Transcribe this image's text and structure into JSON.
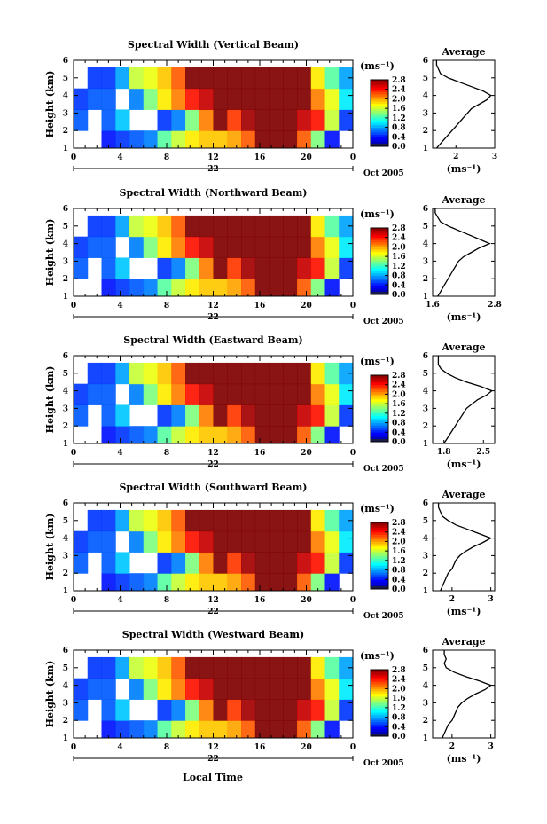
{
  "figure": {
    "bottom_xlabel": "Local Time"
  },
  "chart_data": [
    {
      "type": "heatmap",
      "panel": "vertical",
      "title": "Spectral Width (Vertical Beam)",
      "ylabel": "Height (km)",
      "ylim": [
        1,
        6
      ],
      "yticks": [
        "1",
        "2",
        "3",
        "4",
        "5",
        "6"
      ],
      "xticks": [
        "0",
        "4",
        "8",
        "12",
        "16",
        "20",
        "0"
      ],
      "date_label": "22",
      "month_label": "Oct 2005",
      "colorbar": {
        "unit_label": "(ms⁻¹)",
        "ticks": [
          "0.0",
          "0.4",
          "0.8",
          "1.2",
          "1.6",
          "2.0",
          "2.4",
          "2.8"
        ],
        "min": 0.0,
        "max": 2.8
      },
      "cell_values": [
        [
          0.3,
          0.3,
          0.4,
          0.5,
          0.6,
          0.7,
          1.3,
          1.6,
          1.8,
          1.9,
          1.9,
          2.0,
          2.2,
          2.8,
          2.8,
          2.8,
          2.2,
          1.4,
          0.4,
          0.3
        ],
        [
          0.6,
          0.3,
          0.6,
          0.9,
          0.3,
          0.3,
          0.5,
          0.7,
          1.4,
          2.1,
          2.8,
          2.3,
          2.7,
          2.8,
          2.8,
          2.8,
          2.6,
          2.4,
          1.6,
          0.5
        ],
        [
          0.5,
          0.6,
          0.6,
          0.3,
          0.7,
          1.4,
          1.8,
          2.1,
          2.4,
          2.6,
          2.8,
          2.8,
          2.8,
          2.8,
          2.8,
          2.8,
          2.8,
          2.1,
          1.7,
          1.0
        ],
        [
          0.3,
          0.5,
          0.5,
          0.8,
          1.6,
          1.7,
          1.9,
          2.2,
          2.8,
          2.8,
          2.8,
          2.8,
          2.8,
          2.8,
          2.8,
          2.8,
          2.8,
          1.8,
          1.3,
          0.8
        ]
      ],
      "average": {
        "title": "Average",
        "xlabel": "(ms⁻¹)",
        "xticks": [
          "2",
          "3"
        ],
        "xlim": [
          1.4,
          3.0
        ],
        "heights": [
          1.0,
          1.25,
          1.5,
          1.75,
          2.0,
          2.25,
          2.5,
          2.75,
          3.0,
          3.25,
          3.5,
          3.75,
          4.0,
          4.25,
          4.5,
          4.75,
          5.0,
          5.25,
          5.5,
          5.75,
          6.0
        ],
        "values": [
          1.5,
          1.6,
          1.7,
          1.8,
          1.9,
          2.0,
          2.1,
          2.2,
          2.3,
          2.4,
          2.6,
          2.8,
          2.9,
          2.7,
          2.4,
          2.1,
          1.8,
          1.6,
          1.55,
          1.5,
          1.5
        ]
      }
    },
    {
      "type": "heatmap",
      "panel": "northward",
      "title": "Spectral Width (Northward Beam)",
      "ylabel": "Height (km)",
      "ylim": [
        1,
        6
      ],
      "yticks": [
        "1",
        "2",
        "3",
        "4",
        "5",
        "6"
      ],
      "xticks": [
        "0",
        "4",
        "8",
        "12",
        "16",
        "20",
        "0"
      ],
      "date_label": "22",
      "month_label": "Oct 2005",
      "colorbar": {
        "unit_label": "(ms⁻¹)",
        "ticks": [
          "0.0",
          "0.4",
          "0.8",
          "1.2",
          "1.6",
          "2.0",
          "2.4",
          "2.8"
        ],
        "min": 0.0,
        "max": 2.8
      },
      "cell_values": [
        [
          0.3,
          0.3,
          0.4,
          0.5,
          0.6,
          0.7,
          1.3,
          1.6,
          1.8,
          1.9,
          1.9,
          2.0,
          2.2,
          2.8,
          2.8,
          2.8,
          2.2,
          1.4,
          0.4,
          0.3
        ],
        [
          0.6,
          0.3,
          0.6,
          0.9,
          0.3,
          0.3,
          0.5,
          0.7,
          1.4,
          2.1,
          2.8,
          2.3,
          2.7,
          2.8,
          2.8,
          2.8,
          2.6,
          2.4,
          1.6,
          0.5
        ],
        [
          0.5,
          0.6,
          0.6,
          0.3,
          0.7,
          1.4,
          1.8,
          2.1,
          2.4,
          2.6,
          2.8,
          2.8,
          2.8,
          2.8,
          2.8,
          2.8,
          2.8,
          2.1,
          1.7,
          1.0
        ],
        [
          0.3,
          0.5,
          0.5,
          0.8,
          1.6,
          1.7,
          1.9,
          2.2,
          2.8,
          2.8,
          2.8,
          2.8,
          2.8,
          2.8,
          2.8,
          2.8,
          2.8,
          1.8,
          1.3,
          0.8
        ]
      ],
      "average": {
        "title": "Average",
        "xlabel": "(ms⁻¹)",
        "xticks": [
          "1.6",
          "2.8"
        ],
        "xlim": [
          1.6,
          2.8
        ],
        "heights": [
          1.0,
          1.25,
          1.5,
          1.75,
          2.0,
          2.25,
          2.5,
          2.75,
          3.0,
          3.25,
          3.5,
          3.75,
          4.0,
          4.25,
          4.5,
          4.75,
          5.0,
          5.25,
          5.5,
          5.75,
          6.0
        ],
        "values": [
          1.7,
          1.75,
          1.8,
          1.85,
          1.9,
          1.95,
          2.0,
          2.05,
          2.1,
          2.2,
          2.35,
          2.5,
          2.7,
          2.5,
          2.3,
          2.1,
          1.9,
          1.75,
          1.7,
          1.65,
          1.65
        ]
      }
    },
    {
      "type": "heatmap",
      "panel": "eastward",
      "title": "Spectral Width (Eastward Beam)",
      "ylabel": "Height (km)",
      "ylim": [
        1,
        6
      ],
      "yticks": [
        "1",
        "2",
        "3",
        "4",
        "5",
        "6"
      ],
      "xticks": [
        "0",
        "4",
        "8",
        "12",
        "16",
        "20",
        "0"
      ],
      "date_label": "22",
      "month_label": "Oct 2005",
      "colorbar": {
        "unit_label": "(ms⁻¹)",
        "ticks": [
          "0.0",
          "0.4",
          "0.8",
          "1.2",
          "1.6",
          "2.0",
          "2.4",
          "2.8"
        ],
        "min": 0.0,
        "max": 2.8
      },
      "cell_values": [
        [
          0.3,
          0.3,
          0.4,
          0.5,
          0.6,
          0.7,
          1.3,
          1.6,
          1.8,
          1.9,
          1.9,
          2.0,
          2.2,
          2.8,
          2.8,
          2.8,
          2.2,
          1.4,
          0.4,
          0.3
        ],
        [
          0.6,
          0.3,
          0.6,
          0.9,
          0.3,
          0.3,
          0.5,
          0.7,
          1.4,
          2.1,
          2.8,
          2.3,
          2.7,
          2.8,
          2.8,
          2.8,
          2.6,
          2.4,
          1.6,
          0.5
        ],
        [
          0.5,
          0.6,
          0.6,
          0.3,
          0.7,
          1.4,
          1.8,
          2.1,
          2.4,
          2.6,
          2.8,
          2.8,
          2.8,
          2.8,
          2.8,
          2.8,
          2.8,
          2.1,
          1.7,
          1.0
        ],
        [
          0.3,
          0.5,
          0.5,
          0.8,
          1.6,
          1.7,
          1.9,
          2.2,
          2.8,
          2.8,
          2.8,
          2.8,
          2.8,
          2.8,
          2.8,
          2.8,
          2.8,
          1.8,
          1.3,
          0.8
        ]
      ],
      "average": {
        "title": "Average",
        "xlabel": "(ms⁻¹)",
        "xticks": [
          "1.8",
          "2.5"
        ],
        "xlim": [
          1.6,
          2.7
        ],
        "heights": [
          1.0,
          1.25,
          1.5,
          1.75,
          2.0,
          2.25,
          2.5,
          2.75,
          3.0,
          3.25,
          3.5,
          3.75,
          4.0,
          4.25,
          4.5,
          4.75,
          5.0,
          5.25,
          5.5,
          5.75,
          6.0
        ],
        "values": [
          1.8,
          1.85,
          1.9,
          1.95,
          2.0,
          2.05,
          2.1,
          2.15,
          2.2,
          2.3,
          2.4,
          2.55,
          2.65,
          2.45,
          2.2,
          2.0,
          1.85,
          1.75,
          1.7,
          1.7,
          1.7
        ]
      }
    },
    {
      "type": "heatmap",
      "panel": "southward",
      "title": "Spectral Width (Southward Beam)",
      "ylabel": "Height (km)",
      "ylim": [
        1,
        6
      ],
      "yticks": [
        "1",
        "2",
        "3",
        "4",
        "5",
        "6"
      ],
      "xticks": [
        "0",
        "4",
        "8",
        "12",
        "16",
        "20",
        "0"
      ],
      "date_label": "22",
      "month_label": "Oct 2005",
      "colorbar": {
        "unit_label": "(ms⁻¹)",
        "ticks": [
          "0.0",
          "0.4",
          "0.8",
          "1.2",
          "1.6",
          "2.0",
          "2.4",
          "2.8"
        ],
        "min": 0.0,
        "max": 2.8
      },
      "cell_values": [
        [
          0.3,
          0.3,
          0.4,
          0.5,
          0.6,
          0.7,
          1.3,
          1.6,
          1.8,
          1.9,
          1.9,
          2.0,
          2.2,
          2.8,
          2.8,
          2.8,
          2.2,
          1.4,
          0.4,
          0.3
        ],
        [
          0.6,
          0.3,
          0.6,
          0.9,
          0.3,
          0.3,
          0.5,
          0.7,
          1.4,
          2.1,
          2.8,
          2.3,
          2.7,
          2.8,
          2.8,
          2.8,
          2.6,
          2.4,
          1.6,
          0.5
        ],
        [
          0.5,
          0.6,
          0.6,
          0.3,
          0.7,
          1.4,
          1.8,
          2.1,
          2.4,
          2.6,
          2.8,
          2.8,
          2.8,
          2.8,
          2.8,
          2.8,
          2.8,
          2.1,
          1.7,
          1.0
        ],
        [
          0.3,
          0.5,
          0.5,
          0.8,
          1.6,
          1.7,
          1.9,
          2.2,
          2.8,
          2.8,
          2.8,
          2.8,
          2.8,
          2.8,
          2.8,
          2.8,
          2.8,
          1.8,
          1.3,
          0.8
        ]
      ],
      "average": {
        "title": "Average",
        "xlabel": "(ms⁻¹)",
        "xticks": [
          "2",
          "3"
        ],
        "xlim": [
          1.5,
          3.1
        ],
        "heights": [
          1.0,
          1.25,
          1.5,
          1.75,
          2.0,
          2.25,
          2.5,
          2.75,
          3.0,
          3.25,
          3.5,
          3.75,
          4.0,
          4.25,
          4.5,
          4.75,
          5.0,
          5.25,
          5.5,
          5.75,
          6.0
        ],
        "values": [
          1.7,
          1.75,
          1.8,
          1.85,
          1.9,
          2.0,
          2.05,
          2.1,
          2.2,
          2.35,
          2.55,
          2.8,
          3.0,
          2.7,
          2.4,
          2.1,
          1.9,
          1.75,
          1.7,
          1.65,
          1.65
        ]
      }
    },
    {
      "type": "heatmap",
      "panel": "westward",
      "title": "Spectral Width (Westward Beam)",
      "ylabel": "Height (km)",
      "ylim": [
        1,
        6
      ],
      "yticks": [
        "1",
        "2",
        "3",
        "4",
        "5",
        "6"
      ],
      "xticks": [
        "0",
        "4",
        "8",
        "12",
        "16",
        "20",
        "0"
      ],
      "date_label": "22",
      "month_label": "Oct 2005",
      "colorbar": {
        "unit_label": "(ms⁻¹)",
        "ticks": [
          "0.0",
          "0.4",
          "0.8",
          "1.2",
          "1.6",
          "2.0",
          "2.4",
          "2.8"
        ],
        "min": 0.0,
        "max": 2.8
      },
      "cell_values": [
        [
          0.3,
          0.3,
          0.4,
          0.5,
          0.6,
          0.7,
          1.3,
          1.6,
          1.8,
          1.9,
          1.9,
          2.0,
          2.2,
          2.8,
          2.8,
          2.8,
          2.2,
          1.4,
          0.4,
          0.3
        ],
        [
          0.6,
          0.3,
          0.6,
          0.9,
          0.3,
          0.3,
          0.5,
          0.7,
          1.4,
          2.1,
          2.8,
          2.3,
          2.7,
          2.8,
          2.8,
          2.8,
          2.6,
          2.4,
          1.6,
          0.5
        ],
        [
          0.5,
          0.6,
          0.6,
          0.3,
          0.7,
          1.4,
          1.8,
          2.1,
          2.4,
          2.6,
          2.8,
          2.8,
          2.8,
          2.8,
          2.8,
          2.8,
          2.8,
          2.1,
          1.7,
          1.0
        ],
        [
          0.3,
          0.5,
          0.5,
          0.8,
          1.6,
          1.7,
          1.9,
          2.2,
          2.8,
          2.8,
          2.8,
          2.8,
          2.8,
          2.8,
          2.8,
          2.8,
          2.8,
          1.8,
          1.3,
          0.8
        ]
      ],
      "average": {
        "title": "Average",
        "xlabel": "(ms⁻¹)",
        "xticks": [
          "2",
          "3"
        ],
        "xlim": [
          1.5,
          3.1
        ],
        "heights": [
          1.0,
          1.25,
          1.5,
          1.75,
          2.0,
          2.25,
          2.5,
          2.75,
          3.0,
          3.25,
          3.5,
          3.75,
          4.0,
          4.25,
          4.5,
          4.75,
          5.0,
          5.25,
          5.5,
          5.75,
          6.0
        ],
        "values": [
          1.75,
          1.8,
          1.85,
          1.9,
          2.0,
          2.05,
          2.1,
          2.15,
          2.25,
          2.4,
          2.6,
          2.85,
          3.0,
          2.7,
          2.35,
          2.05,
          1.85,
          1.8,
          1.85,
          1.8,
          1.8
        ]
      }
    }
  ]
}
